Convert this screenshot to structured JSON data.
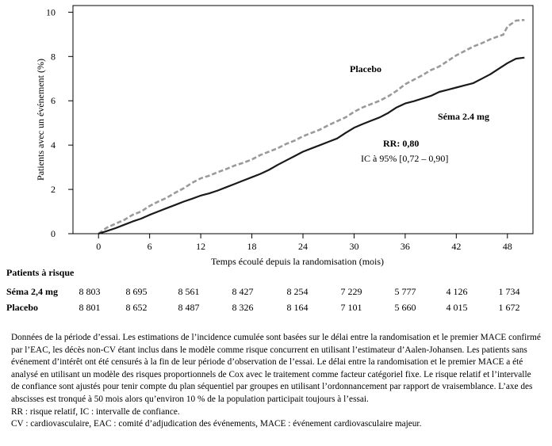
{
  "chart_data": {
    "type": "line",
    "xlabel": "Temps écoulé depuis la randomisation (mois)",
    "ylabel": "Patients avec un événement (%)",
    "xlim": [
      -3,
      51
    ],
    "ylim": [
      0,
      10.3
    ],
    "xticks": [
      0,
      6,
      12,
      18,
      24,
      30,
      36,
      42,
      48
    ],
    "yticks": [
      0,
      2,
      4,
      6,
      8,
      10
    ],
    "series": [
      {
        "name": "Placebo",
        "style": "dashed",
        "color": "#9a9a9a",
        "x": [
          0,
          1,
          2,
          3,
          4,
          5,
          6,
          7,
          8,
          9,
          10,
          11,
          12,
          13,
          14,
          15,
          16,
          17,
          18,
          19,
          20,
          21,
          22,
          23,
          24,
          25,
          26,
          27,
          28,
          29,
          30,
          31,
          32,
          33,
          34,
          35,
          36,
          37,
          38,
          39,
          40,
          41,
          42,
          43,
          44,
          45,
          46,
          47,
          47.5,
          48,
          49,
          50
        ],
        "values": [
          0,
          0.28,
          0.45,
          0.62,
          0.85,
          1.0,
          1.25,
          1.45,
          1.62,
          1.85,
          2.05,
          2.3,
          2.5,
          2.62,
          2.78,
          2.92,
          3.08,
          3.2,
          3.35,
          3.55,
          3.7,
          3.85,
          4.05,
          4.2,
          4.4,
          4.55,
          4.7,
          4.9,
          5.08,
          5.25,
          5.5,
          5.7,
          5.85,
          6.0,
          6.2,
          6.45,
          6.75,
          6.95,
          7.15,
          7.38,
          7.55,
          7.8,
          8.05,
          8.25,
          8.45,
          8.6,
          8.78,
          8.92,
          8.98,
          9.35,
          9.62,
          9.65
        ]
      },
      {
        "name": "Séma 2.4 mg",
        "style": "solid",
        "color": "#1a1a1a",
        "x": [
          0,
          1,
          2,
          3,
          4,
          5,
          6,
          7,
          8,
          9,
          10,
          11,
          12,
          13,
          14,
          15,
          16,
          17,
          18,
          19,
          20,
          21,
          22,
          23,
          24,
          25,
          26,
          27,
          28,
          29,
          30,
          31,
          32,
          33,
          34,
          35,
          36,
          37,
          38,
          39,
          40,
          41,
          42,
          43,
          44,
          45,
          46,
          47,
          48,
          49,
          50
        ],
        "values": [
          0,
          0.12,
          0.25,
          0.4,
          0.55,
          0.68,
          0.85,
          1.0,
          1.15,
          1.3,
          1.45,
          1.58,
          1.72,
          1.82,
          1.95,
          2.1,
          2.25,
          2.4,
          2.55,
          2.7,
          2.88,
          3.1,
          3.3,
          3.5,
          3.7,
          3.85,
          4.0,
          4.15,
          4.3,
          4.55,
          4.78,
          4.95,
          5.1,
          5.25,
          5.45,
          5.7,
          5.88,
          5.98,
          6.1,
          6.22,
          6.4,
          6.5,
          6.6,
          6.7,
          6.8,
          7.0,
          7.2,
          7.45,
          7.7,
          7.9,
          7.95
        ]
      }
    ],
    "annotations": [
      "Placebo",
      "Séma 2.4 mg",
      "RR: 0,80",
      "IC à 95% [0,72 – 0,90]"
    ],
    "grid": false
  },
  "risk_table": {
    "title": "Patients à risque",
    "months": [
      0,
      6,
      12,
      18,
      24,
      30,
      36,
      42,
      48
    ],
    "rows": [
      {
        "label": "Séma 2,4 mg",
        "values": [
          "8 803",
          "8 695",
          "8 561",
          "8 427",
          "8 254",
          "7 229",
          "5 777",
          "4 126",
          "1 734"
        ]
      },
      {
        "label": "Placebo",
        "values": [
          "8 801",
          "8 652",
          "8 487",
          "8 326",
          "8 164",
          "7 101",
          "5 660",
          "4 015",
          "1 672"
        ]
      }
    ]
  },
  "footnote": {
    "main": "Données de la période d’essai. Les estimations de l’incidence cumulée sont basées sur le délai entre la randomisation et le premier MACE confirmé par l’EAC, les décès non-CV étant inclus dans le modèle comme risque concurrent en utilisant l’estimateur d’Aalen-Johansen. Les patients sans événement d’intérêt ont été censurés à la fin de leur période d’observation de l’essai. Le délai entre la randomisation et le premier MACE a été analysé en utilisant un modèle des risques proportionnels de Cox avec le traitement comme facteur catégoriel fixe. Le risque relatif et l’intervalle de confiance sont ajustés pour tenir compte du plan séquentiel par groupes en utilisant l’ordonnancement par rapport de vraisemblance. L’axe des abscisses est tronqué à 50 mois alors qu’environ 10 % de la population participait toujours à l’essai.",
    "abbrev1": "RR : risque relatif, IC : intervalle de confiance.",
    "abbrev2": "CV : cardiovasculaire, EAC : comité d’adjudication des événements, MACE : événement cardiovasculaire majeur."
  }
}
